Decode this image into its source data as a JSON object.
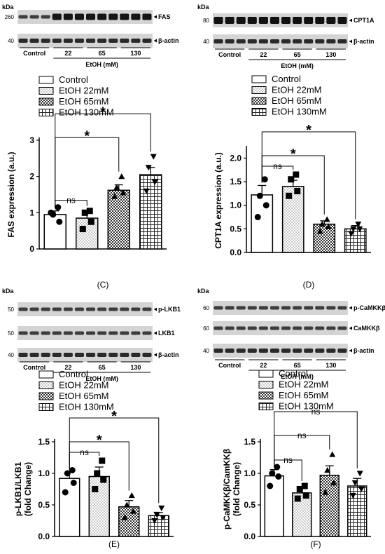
{
  "blot_common": {
    "kda": "kDa",
    "groups": [
      "Control",
      "22",
      "65",
      "130"
    ],
    "etoh_label": "EtOH (mM)",
    "beta_actin": "β-actin"
  },
  "legend": [
    "Control",
    "EtOH 22mM",
    "EtOH 65mM",
    "EtOH 130mM"
  ],
  "blots": [
    {
      "id": "A",
      "rows": [
        {
          "label": "FAS",
          "mw": "260"
        },
        {
          "label": "β-actin",
          "mw": "40"
        }
      ]
    },
    {
      "id": "B",
      "rows": [
        {
          "label": "CPT1A",
          "mw": "80"
        },
        {
          "label": "β-actin",
          "mw": "40"
        }
      ]
    },
    {
      "id": "E",
      "rows": [
        {
          "label": "p-LKB1",
          "mw": "50"
        },
        {
          "label": "LKB1",
          "mw": "50"
        },
        {
          "label": "β-actin",
          "mw": "40"
        }
      ]
    },
    {
      "id": "F",
      "rows": [
        {
          "label": "p-CaMKKβ",
          "mw": "60"
        },
        {
          "label": "CaMKKβ",
          "mw": "60"
        },
        {
          "label": "β-actin",
          "mw": "40"
        }
      ]
    }
  ],
  "chart_data": [
    {
      "type": "bar",
      "panel": "(C)",
      "ylabel": "FAS expression (a.u.)",
      "categories": [
        "Control",
        "EtOH 22mM",
        "EtOH 65mM",
        "EtOH 130mM"
      ],
      "values": [
        0.95,
        0.85,
        1.62,
        2.05
      ],
      "errors": [
        0.1,
        0.15,
        0.15,
        0.2
      ],
      "points": [
        [
          1.0,
          0.75,
          0.95,
          1.15
        ],
        [
          0.55,
          0.75,
          1.0,
          1.05
        ],
        [
          1.45,
          1.55,
          1.7,
          2.0
        ],
        [
          1.6,
          1.85,
          2.25,
          2.55
        ]
      ],
      "ylim": [
        0,
        3
      ],
      "yticks": [
        0,
        1,
        2,
        3
      ],
      "annotations": [
        {
          "from": 0,
          "to": 1,
          "text": "ns"
        },
        {
          "from": 0,
          "to": 2,
          "text": "*"
        },
        {
          "from": 0,
          "to": 3,
          "text": "*"
        }
      ]
    },
    {
      "type": "bar",
      "panel": "(D)",
      "ylabel": "CPT1A expression (a.u.)",
      "categories": [
        "Control",
        "EtOH 22mM",
        "EtOH 65mM",
        "EtOH 130mM"
      ],
      "values": [
        1.22,
        1.4,
        0.6,
        0.5
      ],
      "errors": [
        0.2,
        0.13,
        0.07,
        0.07
      ],
      "points": [
        [
          0.75,
          1.0,
          1.2,
          1.55
        ],
        [
          1.2,
          1.3,
          1.55,
          1.65
        ],
        [
          0.45,
          0.55,
          0.6,
          0.7
        ],
        [
          0.4,
          0.5,
          0.5,
          0.6
        ]
      ],
      "ylim": [
        0,
        2.2
      ],
      "yticks": [
        0.0,
        0.5,
        1.0,
        1.5,
        2.0
      ],
      "annotations": [
        {
          "from": 0,
          "to": 1,
          "text": "ns"
        },
        {
          "from": 0,
          "to": 2,
          "text": "*"
        },
        {
          "from": 0,
          "to": 3,
          "text": "*"
        }
      ]
    },
    {
      "type": "bar",
      "panel": "(E)",
      "ylabel": "p-LKB1/LKB1 (fold Change)",
      "categories": [
        "Control",
        "EtOH 22mM",
        "EtOH 65mM",
        "EtOH 130mM"
      ],
      "values": [
        0.92,
        0.95,
        0.47,
        0.33
      ],
      "errors": [
        0.1,
        0.15,
        0.1,
        0.05
      ],
      "points": [
        [
          0.7,
          0.85,
          1.0,
          1.05
        ],
        [
          0.75,
          0.9,
          1.0,
          1.2
        ],
        [
          0.3,
          0.4,
          0.5,
          0.65
        ],
        [
          0.25,
          0.3,
          0.35,
          0.45
        ]
      ],
      "ylim": [
        0,
        1.5
      ],
      "yticks": [
        0.0,
        0.5,
        1.0,
        1.5
      ],
      "annotations": [
        {
          "from": 0,
          "to": 1,
          "text": "ns"
        },
        {
          "from": 0,
          "to": 2,
          "text": "*"
        },
        {
          "from": 0,
          "to": 3,
          "text": "*"
        }
      ]
    },
    {
      "type": "bar",
      "panel": "(F)",
      "ylabel": "p-CaMKKβ/CamKKβ (fold Change)",
      "categories": [
        "Control",
        "EtOH 22mM",
        "EtOH 65mM",
        "EtOH 130mM"
      ],
      "values": [
        0.96,
        0.69,
        0.97,
        0.8
      ],
      "errors": [
        0.1,
        0.07,
        0.15,
        0.12
      ],
      "points": [
        [
          0.8,
          0.95,
          1.0,
          1.1
        ],
        [
          0.6,
          0.65,
          0.75,
          0.8
        ],
        [
          0.7,
          0.85,
          1.05,
          1.3
        ],
        [
          0.65,
          0.75,
          0.85,
          1.0
        ]
      ],
      "ylim": [
        0,
        1.5
      ],
      "yticks": [
        0.0,
        0.5,
        1.0,
        1.5
      ],
      "annotations": [
        {
          "from": 0,
          "to": 1,
          "text": "ns"
        },
        {
          "from": 0,
          "to": 2,
          "text": "ns"
        },
        {
          "from": 0,
          "to": 3,
          "text": "ns"
        }
      ]
    }
  ]
}
